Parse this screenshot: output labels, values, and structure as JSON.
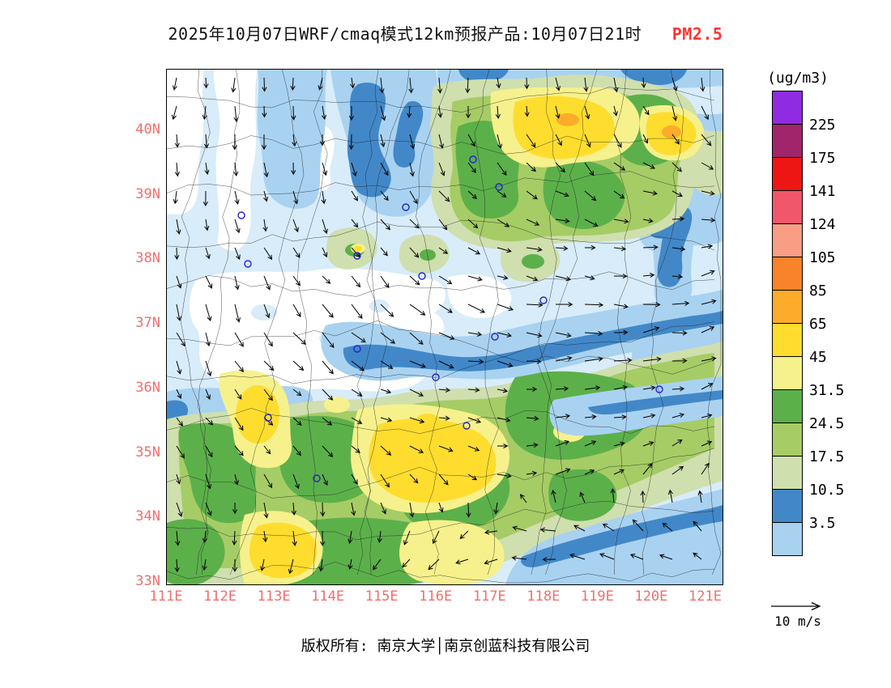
{
  "title": {
    "main": "2025年10月07日WRF/cmaq模式12km预报产品:10月07日21时",
    "species": "PM2.5",
    "species_color": "#ff3333"
  },
  "colorbar": {
    "unit": "(ug/m3)",
    "boundaries": [
      "225",
      "175",
      "141",
      "124",
      "105",
      "85",
      "65",
      "45",
      "31.5",
      "24.5",
      "17.5",
      "10.5",
      "3.5"
    ],
    "colors": [
      "#8f2be0",
      "#a1256b",
      "#ee1515",
      "#f2566a",
      "#f99d85",
      "#f8832a",
      "#fcab2b",
      "#ffdd2e",
      "#f6f18c",
      "#5cb04a",
      "#a6cc66",
      "#cfdfae",
      "#4288c8",
      "#a9d2f1"
    ]
  },
  "axes": {
    "lat": [
      "40N",
      "39N",
      "38N",
      "37N",
      "36N",
      "35N",
      "34N",
      "33N"
    ],
    "lon": [
      "111E",
      "112E",
      "113E",
      "114E",
      "115E",
      "116E",
      "117E",
      "118E",
      "119E",
      "120E",
      "121E"
    ],
    "label_color": "#ef6f6f"
  },
  "palette": {
    "white": "#ffffff",
    "paleblue": "#d8ecfa",
    "lightblue": "#a9d2f1",
    "blue": "#4288c8",
    "sage": "#cfdfae",
    "yellowgreen": "#a6cc66",
    "green": "#5cb04a",
    "paleyellow": "#f6f18c",
    "yellow": "#ffdd2e",
    "amber": "#fcab2b"
  },
  "wind_legend": {
    "label": "10 m/s"
  },
  "footer": {
    "text": "版权所有: 南京大学│南京创蓝科技有限公司"
  }
}
